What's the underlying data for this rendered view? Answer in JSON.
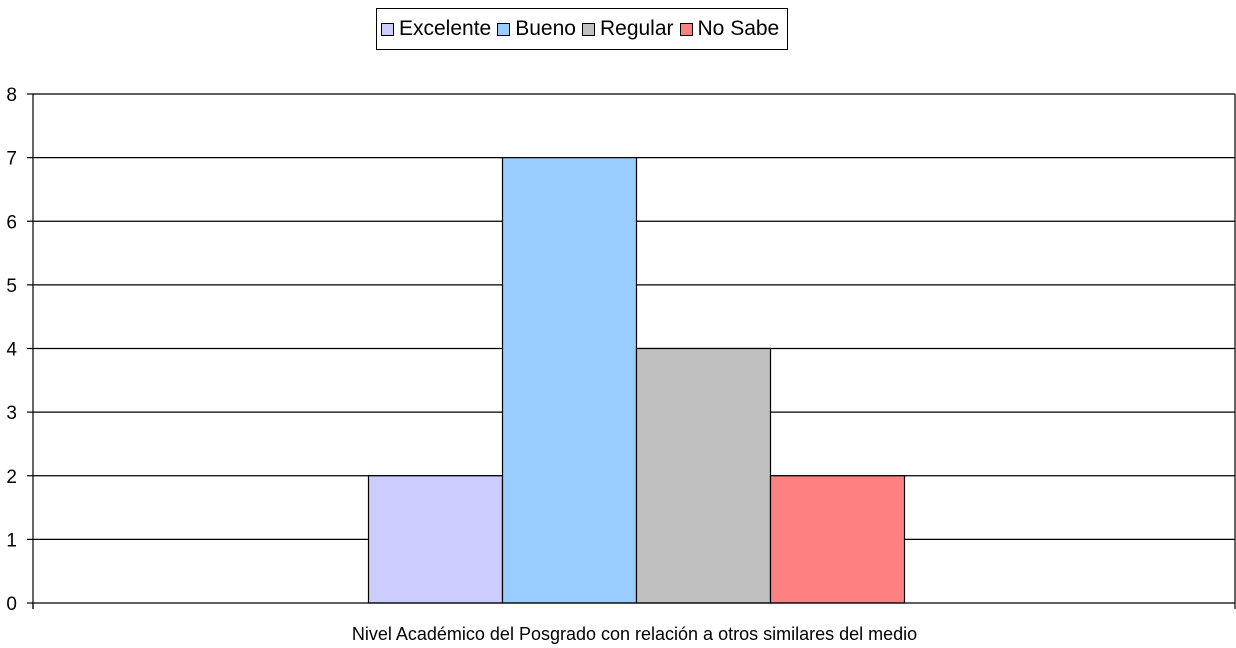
{
  "chart_data": {
    "type": "bar",
    "categories": [
      "Nivel Académico del Posgrado con relación a otros similares del medio"
    ],
    "series": [
      {
        "name": "Excelente",
        "values": [
          2
        ],
        "color": "#ccccff"
      },
      {
        "name": "Bueno",
        "values": [
          7
        ],
        "color": "#99ccff"
      },
      {
        "name": "Regular",
        "values": [
          4
        ],
        "color": "#c0c0c0"
      },
      {
        "name": "No Sabe",
        "values": [
          2
        ],
        "color": "#ff8080"
      }
    ],
    "title": "",
    "xlabel": "Nivel Académico del Posgrado con relación a otros similares del medio",
    "ylabel": "",
    "ylim": [
      0,
      8
    ],
    "yticks": [
      "0",
      "1",
      "2",
      "3",
      "4",
      "5",
      "6",
      "7",
      "8"
    ],
    "grid": true,
    "legend_position": "top"
  }
}
